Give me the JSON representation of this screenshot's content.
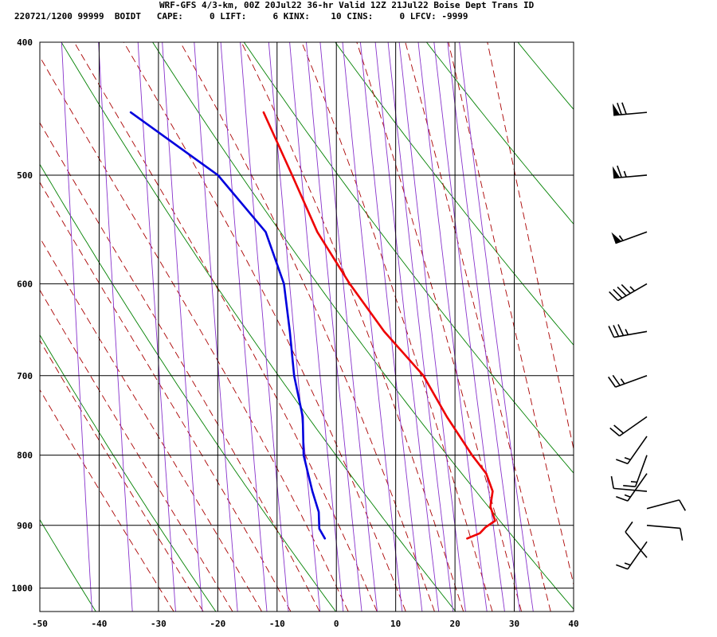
{
  "header": {
    "line1": "WRF-GFS 4/3-km, 00Z 20Jul22 36-hr Valid 12Z 21Jul22 Boise Dept Trans ID",
    "line2": "220721/1200 99999  BOIDT   CAPE:     0 LIFT:     6 KINX:    10 CINS:     0 LFCV: -9999"
  },
  "chart_data": {
    "type": "skew-t",
    "x_ticks": [
      -50,
      -40,
      -30,
      -20,
      -10,
      0,
      10,
      20,
      30,
      40
    ],
    "xlim": [
      -50,
      40
    ],
    "y_ticks": [
      400,
      500,
      600,
      700,
      800,
      900,
      1000
    ],
    "ylim": [
      1040,
      400
    ],
    "y_scale": "log",
    "grid": true,
    "colors": {
      "temperature": "#ee0000",
      "dewpoint": "#0000dd",
      "dry_adiabat": "#008000",
      "moist_adiabat": "#aa0000",
      "mixing_ratio": "#8833cc",
      "grid": "#000000"
    },
    "series": [
      {
        "key": "temperature",
        "points": [
          {
            "p": 450,
            "t": -15.4
          },
          {
            "p": 500,
            "t": -10.2
          },
          {
            "p": 550,
            "t": -5.6
          },
          {
            "p": 600,
            "t": 0.2
          },
          {
            "p": 650,
            "t": 6.3
          },
          {
            "p": 700,
            "t": 13.2
          },
          {
            "p": 750,
            "t": 17.4
          },
          {
            "p": 800,
            "t": 21.9
          },
          {
            "p": 825,
            "t": 24.4
          },
          {
            "p": 850,
            "t": 25.6
          },
          {
            "p": 872,
            "t": 25.3
          },
          {
            "p": 893,
            "t": 26.2
          },
          {
            "p": 903,
            "t": 24.6
          },
          {
            "p": 912,
            "t": 23.7
          },
          {
            "p": 920,
            "t": 21.6
          }
        ]
      },
      {
        "key": "dewpoint",
        "points": [
          {
            "p": 450,
            "t": -37.8
          },
          {
            "p": 500,
            "t": -22.7
          },
          {
            "p": 550,
            "t": -14.3
          },
          {
            "p": 600,
            "t": -10.9
          },
          {
            "p": 650,
            "t": -9.6
          },
          {
            "p": 700,
            "t": -8.6
          },
          {
            "p": 750,
            "t": -6.9
          },
          {
            "p": 800,
            "t": -6.5
          },
          {
            "p": 850,
            "t": -4.8
          },
          {
            "p": 880,
            "t": -3.6
          },
          {
            "p": 905,
            "t": -3.4
          },
          {
            "p": 920,
            "t": -2.4
          }
        ]
      }
    ],
    "wind_barbs": [
      {
        "p": 450,
        "dir": 265,
        "spd": 70
      },
      {
        "p": 500,
        "dir": 265,
        "spd": 65
      },
      {
        "p": 550,
        "dir": 250,
        "spd": 55
      },
      {
        "p": 600,
        "dir": 240,
        "spd": 45
      },
      {
        "p": 650,
        "dir": 260,
        "spd": 35
      },
      {
        "p": 700,
        "dir": 250,
        "spd": 25
      },
      {
        "p": 750,
        "dir": 235,
        "spd": 20
      },
      {
        "p": 775,
        "dir": 215,
        "spd": 15
      },
      {
        "p": 800,
        "dir": 200,
        "spd": 15
      },
      {
        "p": 825,
        "dir": 215,
        "spd": 15
      },
      {
        "p": 850,
        "dir": 275,
        "spd": 10
      },
      {
        "p": 875,
        "dir": 75,
        "spd": 10
      },
      {
        "p": 900,
        "dir": 95,
        "spd": 10
      },
      {
        "p": 925,
        "dir": 215,
        "spd": 15
      },
      {
        "p": 950,
        "dir": 320,
        "spd": 10
      }
    ]
  }
}
